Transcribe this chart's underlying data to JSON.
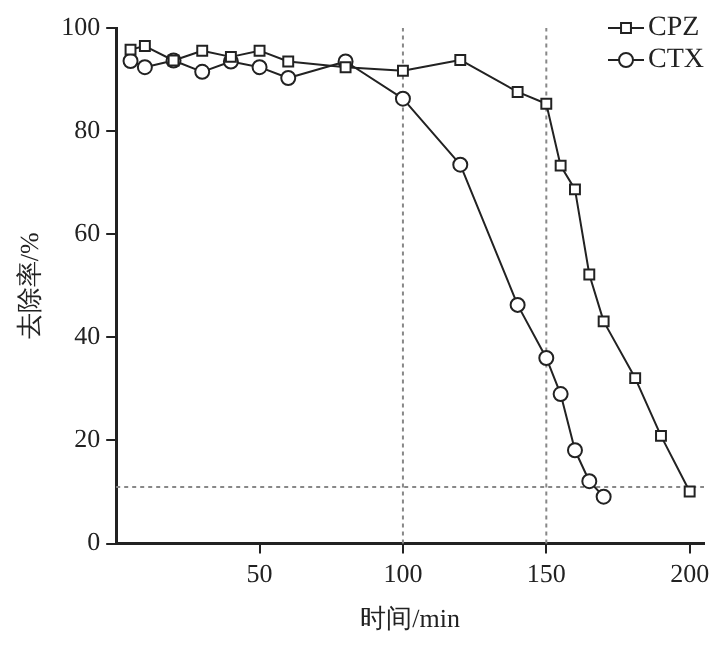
{
  "chart_data": {
    "type": "line",
    "xlabel": "时间/min",
    "ylabel": "去除率/%",
    "xlim": [
      0,
      205
    ],
    "xticks": [
      50,
      100,
      150,
      200
    ],
    "ylim": [
      0,
      100
    ],
    "yticks": [
      0,
      20,
      40,
      60,
      80,
      100
    ],
    "grid": false,
    "legend": "top right",
    "line_style": "solid",
    "series": [
      {
        "name": "CPZ",
        "color": "#222222",
        "marker": "square",
        "x": [
          5,
          10,
          20,
          30,
          40,
          50,
          60,
          80,
          100,
          120,
          140,
          150,
          155,
          160,
          165,
          170,
          181,
          190,
          200
        ],
        "values": [
          95.8,
          96.5,
          93.7,
          95.6,
          94.4,
          95.6,
          93.5,
          92.4,
          91.7,
          93.8,
          87.6,
          85.3,
          73.3,
          68.7,
          52.2,
          43.1,
          32.1,
          20.9,
          10.1
        ]
      },
      {
        "name": "CTX",
        "color": "#222222",
        "marker": "circle",
        "x": [
          5,
          10,
          20,
          30,
          40,
          50,
          60,
          80,
          100,
          120,
          140,
          150,
          155,
          160,
          165,
          170
        ],
        "values": [
          93.6,
          92.4,
          93.7,
          91.5,
          93.5,
          92.4,
          90.3,
          93.5,
          86.3,
          73.5,
          46.3,
          36,
          29,
          18.1,
          12.1,
          9.1
        ]
      }
    ],
    "ref_lines": [
      {
        "axis": "x",
        "value": 100,
        "color": "#888888",
        "line_style": "dotted"
      },
      {
        "axis": "x",
        "value": 150,
        "color": "#888888",
        "line_style": "dotted"
      },
      {
        "axis": "y",
        "value": 11,
        "color": "#888888",
        "line_style": "dotted"
      }
    ]
  }
}
